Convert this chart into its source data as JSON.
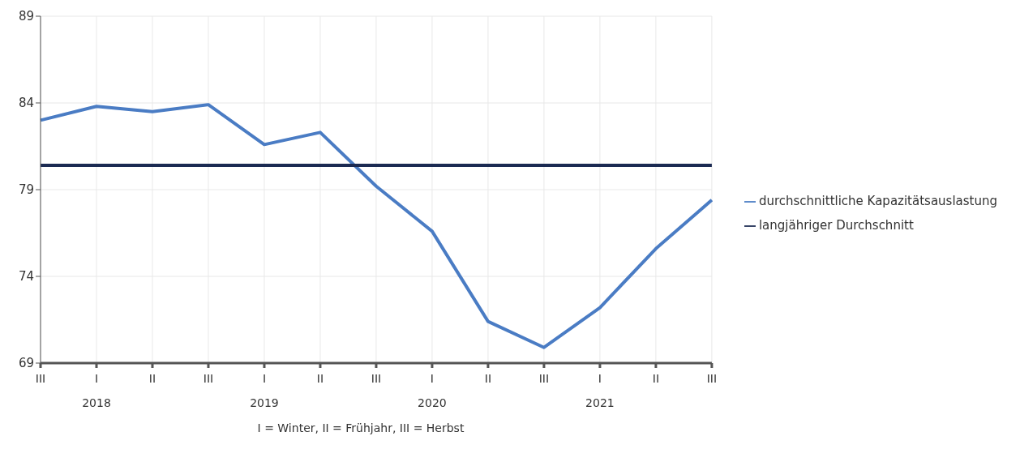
{
  "chart_data": {
    "type": "line",
    "categories": [
      "III",
      "I\n2018",
      "II",
      "III",
      "I\n2019",
      "II",
      "III",
      "I\n2020",
      "II",
      "III",
      "I\n2021",
      "II",
      "III"
    ],
    "series": [
      {
        "name": "durchschnittliche Kapazitätsauslastung",
        "color": "#4a7cc4",
        "values": [
          83.0,
          83.8,
          83.5,
          83.9,
          81.6,
          82.3,
          79.2,
          76.6,
          71.4,
          69.9,
          72.2,
          75.6,
          78.4
        ]
      },
      {
        "name": "langjähriger Durchschnitt",
        "color": "#1b2a52",
        "values": [
          80.4,
          80.4,
          80.4,
          80.4,
          80.4,
          80.4,
          80.4,
          80.4,
          80.4,
          80.4,
          80.4,
          80.4,
          80.4
        ]
      }
    ],
    "ylim": [
      69,
      89
    ],
    "yticks": [
      69,
      74,
      79,
      84,
      89
    ],
    "grid": true,
    "legend": "right",
    "marker": "none",
    "line_style": "solid",
    "annotations": [
      "I = Winter, II = Frühjahr, III = Herbst"
    ]
  }
}
